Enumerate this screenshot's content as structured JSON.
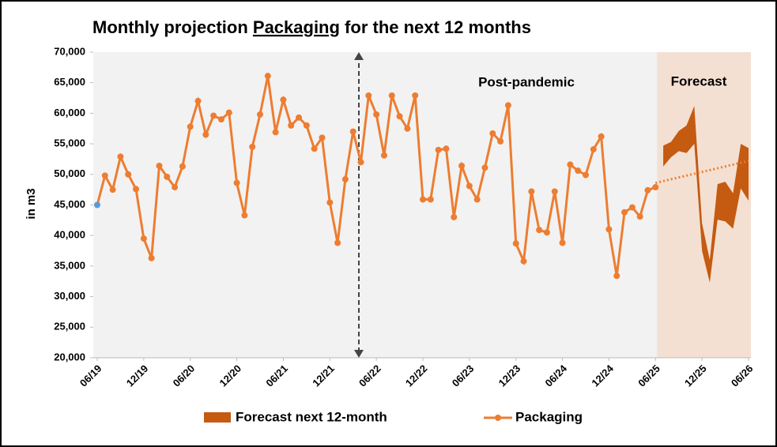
{
  "chart_data": {
    "type": "line",
    "title_parts": [
      "Monthly projection ",
      "Packaging",
      " for the next 12 months"
    ],
    "ylabel": "in m3",
    "annotations": [
      "Post-pandemic",
      "Forecast"
    ],
    "categories": [
      "06/19",
      null,
      null,
      null,
      null,
      null,
      "12/19",
      null,
      null,
      null,
      null,
      null,
      "06/20",
      null,
      null,
      null,
      null,
      null,
      "12/20",
      null,
      null,
      null,
      null,
      null,
      "06/21",
      null,
      null,
      null,
      null,
      null,
      "12/21",
      null,
      null,
      null,
      null,
      null,
      "06/22",
      null,
      null,
      null,
      null,
      null,
      "12/22",
      null,
      null,
      null,
      null,
      null,
      "06/23",
      null,
      null,
      null,
      null,
      null,
      "12/23",
      null,
      null,
      null,
      null,
      null,
      "06/24",
      null,
      null,
      null,
      null,
      null,
      "12/24",
      null,
      null,
      null,
      null,
      null,
      "06/25",
      null,
      null,
      null,
      null,
      null,
      "12/25",
      null,
      null,
      null,
      null,
      null,
      "06/26"
    ],
    "series": [
      {
        "name": "Packaging",
        "color": "#ed7d31",
        "first_point_color": "#5b9bd5",
        "values": [
          45000,
          49800,
          47500,
          52900,
          50000,
          47600,
          39500,
          36300,
          51400,
          49600,
          47900,
          51300,
          57800,
          62000,
          56500,
          59600,
          59000,
          60100,
          48600,
          43300,
          54500,
          59800,
          66100,
          56900,
          62200,
          58000,
          59300,
          58000,
          54200,
          56000,
          45400,
          38800,
          49200,
          57000,
          52000,
          62900,
          59800,
          53100,
          62900,
          59500,
          57500,
          62900,
          45900,
          45900,
          54000,
          54200,
          43000,
          51400,
          48100,
          45900,
          51100,
          56700,
          55400,
          61300,
          38700,
          35800,
          47200,
          40900,
          40500,
          47200,
          38800,
          51600,
          50600,
          49900,
          54100,
          56200,
          41000,
          33400,
          43800,
          44600,
          43100,
          47400,
          47900,
          null,
          null,
          null,
          null,
          null,
          null,
          null,
          null,
          null,
          null,
          null,
          null
        ]
      }
    ],
    "forecast": {
      "name": "Forecast next 12-month",
      "color": "#c55a11",
      "shade_color": "#f4e0d2",
      "low": [
        null,
        null,
        null,
        null,
        null,
        null,
        null,
        null,
        null,
        null,
        null,
        null,
        null,
        null,
        null,
        null,
        null,
        null,
        null,
        null,
        null,
        null,
        null,
        null,
        null,
        null,
        null,
        null,
        null,
        null,
        null,
        null,
        null,
        null,
        null,
        null,
        null,
        null,
        null,
        null,
        null,
        null,
        null,
        null,
        null,
        null,
        null,
        null,
        null,
        null,
        null,
        null,
        null,
        null,
        null,
        null,
        null,
        null,
        null,
        null,
        null,
        null,
        null,
        null,
        null,
        null,
        null,
        null,
        null,
        null,
        null,
        null,
        null,
        51300,
        52800,
        53800,
        53500,
        55000,
        37500,
        32300,
        42600,
        42300,
        41100,
        47700,
        45700
      ],
      "high": [
        null,
        null,
        null,
        null,
        null,
        null,
        null,
        null,
        null,
        null,
        null,
        null,
        null,
        null,
        null,
        null,
        null,
        null,
        null,
        null,
        null,
        null,
        null,
        null,
        null,
        null,
        null,
        null,
        null,
        null,
        null,
        null,
        null,
        null,
        null,
        null,
        null,
        null,
        null,
        null,
        null,
        null,
        null,
        null,
        null,
        null,
        null,
        null,
        null,
        null,
        null,
        null,
        null,
        null,
        null,
        null,
        null,
        null,
        null,
        null,
        null,
        null,
        null,
        null,
        null,
        null,
        null,
        null,
        null,
        null,
        null,
        null,
        null,
        54700,
        55300,
        57100,
        58000,
        61200,
        42000,
        36000,
        48400,
        48800,
        46900,
        55000,
        54300
      ],
      "trend": [
        null,
        null,
        null,
        null,
        null,
        null,
        null,
        null,
        null,
        null,
        null,
        null,
        null,
        null,
        null,
        null,
        null,
        null,
        null,
        null,
        null,
        null,
        null,
        null,
        null,
        null,
        null,
        null,
        null,
        null,
        null,
        null,
        null,
        null,
        null,
        null,
        null,
        null,
        null,
        null,
        null,
        null,
        null,
        null,
        null,
        null,
        null,
        null,
        null,
        null,
        null,
        null,
        null,
        null,
        null,
        null,
        null,
        null,
        null,
        null,
        null,
        null,
        null,
        null,
        null,
        null,
        null,
        null,
        null,
        null,
        null,
        null,
        48600,
        48900,
        49200,
        49500,
        49800,
        50100,
        50400,
        50700,
        51000,
        51300,
        51600,
        51900,
        52200
      ]
    },
    "ylim": [
      20000,
      70000
    ],
    "yticks": [
      {
        "value": 20000,
        "label": "20,000"
      },
      {
        "value": 25000,
        "label": "25,000"
      },
      {
        "value": 30000,
        "label": "30,000"
      },
      {
        "value": 35000,
        "label": "35,000"
      },
      {
        "value": 40000,
        "label": "40,000"
      },
      {
        "value": 45000,
        "label": "45,000"
      },
      {
        "value": 50000,
        "label": "50,000"
      },
      {
        "value": 55000,
        "label": "55,000"
      },
      {
        "value": 60000,
        "label": "60,000"
      },
      {
        "value": 65000,
        "label": "65,000"
      },
      {
        "value": 70000,
        "label": "70,000"
      }
    ],
    "legend": "bottom"
  }
}
